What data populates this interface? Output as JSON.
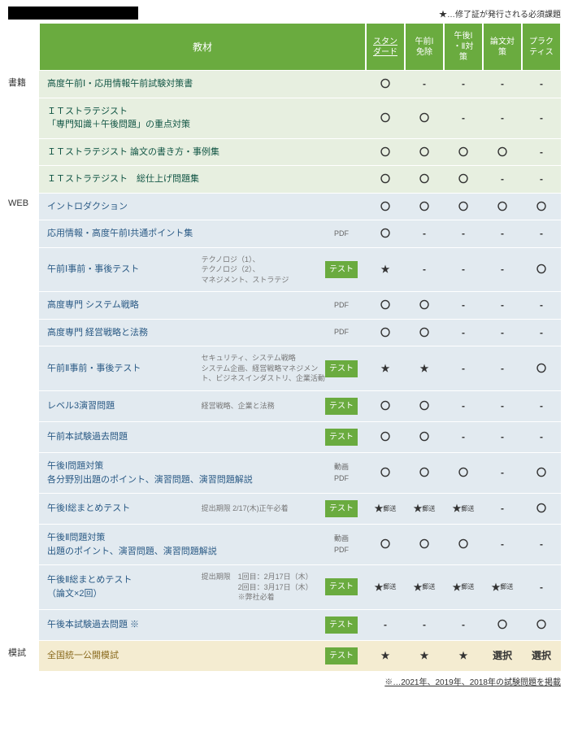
{
  "legend_note": "★…修了証が発行される必須課題",
  "footnote": "※…2021年、2019年、2018年の試験問題を掲載",
  "colors": {
    "header_bg": "#6aab3f",
    "book_bg": "#e7efe0",
    "web_bg": "#e2eaf0",
    "moshi_bg": "#f4ecd1",
    "tag_test_bg": "#6aab3f"
  },
  "header": {
    "materials": "教材",
    "cols": [
      "スタンダード",
      "午前Ⅰ免除",
      "午後Ⅰ・Ⅱ対策",
      "論文対策",
      "プラクティス"
    ]
  },
  "sections": [
    {
      "cat": "書籍",
      "bg": "book-bg",
      "titleClass": "title",
      "rows": [
        {
          "title": "高度午前Ⅰ・応用情報午前試験対策書",
          "cells": [
            "〇",
            "-",
            "-",
            "-",
            "-"
          ]
        },
        {
          "title": "ＩＴストラテジスト<br>「専門知識＋午後問題」の重点対策",
          "cells": [
            "〇",
            "〇",
            "-",
            "-",
            "-"
          ]
        },
        {
          "title": "ＩＴストラテジスト 論文の書き方・事例集",
          "cells": [
            "〇",
            "〇",
            "〇",
            "〇",
            "-"
          ]
        },
        {
          "title": "ＩＴストラテジスト　総仕上げ問題集",
          "cells": [
            "〇",
            "〇",
            "〇",
            "-",
            "-"
          ]
        }
      ]
    },
    {
      "cat": "WEB",
      "bg": "web-bg",
      "titleClass": "title-blue",
      "rows": [
        {
          "title": "イントロダクション",
          "cells": [
            "〇",
            "〇",
            "〇",
            "〇",
            "〇"
          ]
        },
        {
          "title": "応用情報・高度午前Ⅰ共通ポイント集",
          "tag": "PDF",
          "cells": [
            "〇",
            "-",
            "-",
            "-",
            "-"
          ]
        },
        {
          "title": "午前Ⅰ事前・事後テスト",
          "subtitle": "テクノロジ（1）、<br>テクノロジ（2）、<br>マネジメント、ストラテジ",
          "tag": "テスト",
          "test": true,
          "cells": [
            "★",
            "-",
            "-",
            "-",
            "〇"
          ]
        },
        {
          "title": "高度専門 システム戦略",
          "tag": "PDF",
          "cells": [
            "〇",
            "〇",
            "-",
            "-",
            "-"
          ]
        },
        {
          "title": "高度専門 経営戦略と法務",
          "tag": "PDF",
          "cells": [
            "〇",
            "〇",
            "-",
            "-",
            "-"
          ]
        },
        {
          "title": "午前Ⅱ事前・事後テスト",
          "subtitle": "セキュリティ、システム戦略<br>システム企画、経営戦略マネジメント、ビジネスインダストリ、企業活動",
          "tag": "テスト",
          "test": true,
          "cells": [
            "★",
            "★",
            "-",
            "-",
            "〇"
          ]
        },
        {
          "title": "レベル3演習問題",
          "subtitle": "経営戦略、企業と法務",
          "tag": "テスト",
          "test": true,
          "cells": [
            "〇",
            "〇",
            "-",
            "-",
            "-"
          ]
        },
        {
          "title": "午前本試験過去問題",
          "tag": "テスト",
          "test": true,
          "cells": [
            "〇",
            "〇",
            "-",
            "-",
            "-"
          ]
        },
        {
          "title": "午後Ⅰ問題対策<br>各分野別出題のポイント、演習問題、演習問題解説",
          "tag": "動画<br>PDF",
          "cells": [
            "〇",
            "〇",
            "〇",
            "-",
            "〇"
          ]
        },
        {
          "title": "午後Ⅰ総まとめテスト",
          "subtitle": "提出期限 2/17(木)正午必着",
          "tag": "テスト",
          "test": true,
          "cells": [
            "★<span class='sub'>郵送</span>",
            "★<span class='sub'>郵送</span>",
            "★<span class='sub'>郵送</span>",
            "-",
            "〇"
          ]
        },
        {
          "title": "午後Ⅱ問題対策<br>出題のポイント、演習問題、演習問題解説",
          "tag": "動画<br>PDF",
          "cells": [
            "〇",
            "〇",
            "〇",
            "-",
            "-"
          ]
        },
        {
          "title": "午後Ⅱ総まとめテスト<br>（論文×2回）",
          "subtitle": "提出期限　1回目：2月17日（木）<br>　　　　　2回目：3月17日（木）<br>　　　　　※弊社必着",
          "tag": "テスト",
          "test": true,
          "cells": [
            "★<span class='sub'>郵送</span>",
            "★<span class='sub'>郵送</span>",
            "★<span class='sub'>郵送</span>",
            "★<span class='sub'>郵送</span>",
            "-"
          ]
        },
        {
          "title": "午後本試験過去問題 ※",
          "tag": "テスト",
          "test": true,
          "cells": [
            "-",
            "-",
            "-",
            "〇",
            "〇"
          ]
        }
      ]
    },
    {
      "cat": "模試",
      "bg": "moshi-bg",
      "titleClass": "title-yellow",
      "rows": [
        {
          "title": "全国統一公開模試",
          "tag": "テスト",
          "test": true,
          "cells": [
            "★",
            "★",
            "★",
            "選択",
            "選択"
          ]
        }
      ]
    }
  ]
}
